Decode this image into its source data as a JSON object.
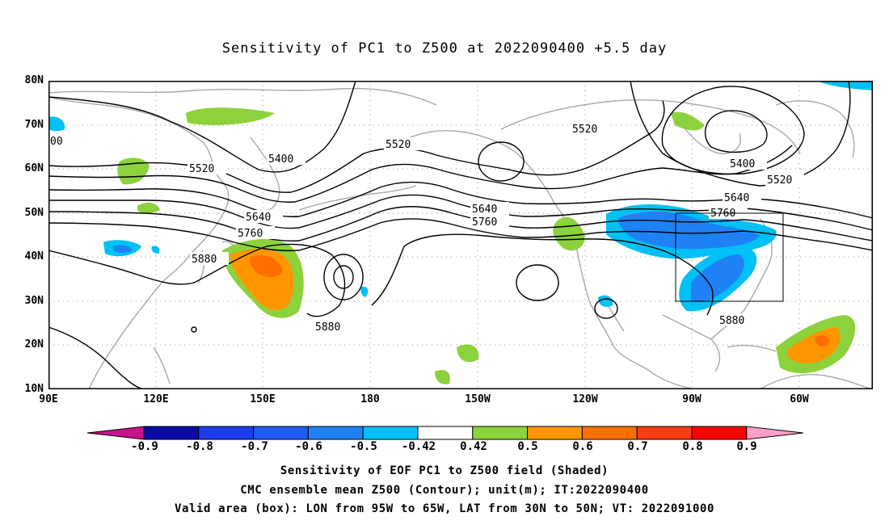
{
  "title": "Sensitivity of PC1 to Z500 at 2022090400 +5.5 day",
  "map": {
    "lat_labels": [
      "80N",
      "70N",
      "60N",
      "50N",
      "40N",
      "30N",
      "20N",
      "10N"
    ],
    "lon_labels": [
      "90E",
      "120E",
      "150E",
      "180",
      "150W",
      "120W",
      "90W",
      "60W"
    ],
    "contour_labels": [
      "5400",
      "5520",
      "5640",
      "5760",
      "5880",
      "5520",
      "5640",
      "5760",
      "5520",
      "5400",
      "5520",
      "5640",
      "5760",
      "5880",
      "5880",
      "00"
    ],
    "valid_box": {
      "lon_west": -95,
      "lon_east": -65,
      "lat_south": 30,
      "lat_north": 50
    }
  },
  "colorbar": {
    "labels": [
      "-0.9",
      "-0.8",
      "-0.7",
      "-0.6",
      "-0.5",
      "-0.42",
      "0.42",
      "0.5",
      "0.6",
      "0.7",
      "0.8",
      "0.9"
    ],
    "colors": [
      "#0a0aa8",
      "#1e3cf0",
      "#1e5af5",
      "#1e82f5",
      "#00c0f5",
      "#ffffff",
      "#8cd23c",
      "#ff9600",
      "#ff6e00",
      "#ff3c14",
      "#ff0000"
    ],
    "left_tip_color": "#c8148c",
    "right_tip_color": "#ffa0c8"
  },
  "captions": [
    "Sensitivity of EOF PC1 to Z500 field (Shaded)",
    "CMC ensemble mean Z500 (Contour); unit(m); IT:2022090400",
    "Valid area (box): LON from 95W to 65W, LAT from 30N to 50N; VT: 2022091000"
  ]
}
